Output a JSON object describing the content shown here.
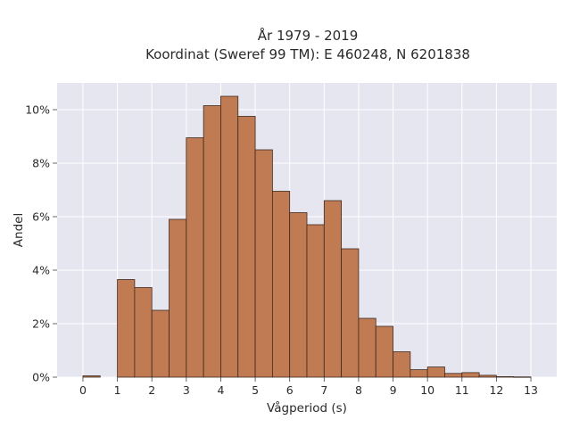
{
  "chart_data": {
    "type": "bar",
    "title_lines": [
      "År 1979 - 2019",
      "Koordinat (Sweref 99 TM): E 460248, N 6201838"
    ],
    "xlabel": "Vågperiod (s)",
    "ylabel": "Andel",
    "bin_width": 0.5,
    "xlim": [
      -0.75,
      13.75
    ],
    "ylim": [
      0,
      11
    ],
    "x_ticks": [
      0,
      1,
      2,
      3,
      4,
      5,
      6,
      7,
      8,
      9,
      10,
      11,
      12,
      13
    ],
    "y_ticks": [
      0,
      2,
      4,
      6,
      8,
      10
    ],
    "y_tick_labels": [
      "0%",
      "2%",
      "4%",
      "6%",
      "8%",
      "10%"
    ],
    "bins": [
      {
        "x": 0.0,
        "value": 0.05
      },
      {
        "x": 1.0,
        "value": 3.65
      },
      {
        "x": 1.5,
        "value": 3.35
      },
      {
        "x": 2.0,
        "value": 2.5
      },
      {
        "x": 2.5,
        "value": 5.9
      },
      {
        "x": 3.0,
        "value": 8.95
      },
      {
        "x": 3.5,
        "value": 10.15
      },
      {
        "x": 4.0,
        "value": 10.5
      },
      {
        "x": 4.5,
        "value": 9.75
      },
      {
        "x": 5.0,
        "value": 8.5
      },
      {
        "x": 5.5,
        "value": 6.95
      },
      {
        "x": 6.0,
        "value": 6.15
      },
      {
        "x": 6.5,
        "value": 5.7
      },
      {
        "x": 7.0,
        "value": 6.6
      },
      {
        "x": 7.5,
        "value": 4.8
      },
      {
        "x": 8.0,
        "value": 2.2
      },
      {
        "x": 8.5,
        "value": 1.9
      },
      {
        "x": 9.0,
        "value": 0.95
      },
      {
        "x": 9.5,
        "value": 0.28
      },
      {
        "x": 10.0,
        "value": 0.38
      },
      {
        "x": 10.5,
        "value": 0.14
      },
      {
        "x": 11.0,
        "value": 0.17
      },
      {
        "x": 11.5,
        "value": 0.07
      },
      {
        "x": 12.0,
        "value": 0.02
      },
      {
        "x": 12.5,
        "value": 0.01
      }
    ],
    "grid": true,
    "legend": "none",
    "colors": {
      "bar_fill": "#c07b53",
      "bar_edge": "#3d2a1e",
      "plot_background": "#e6e6f0",
      "grid": "#ffffff"
    }
  }
}
